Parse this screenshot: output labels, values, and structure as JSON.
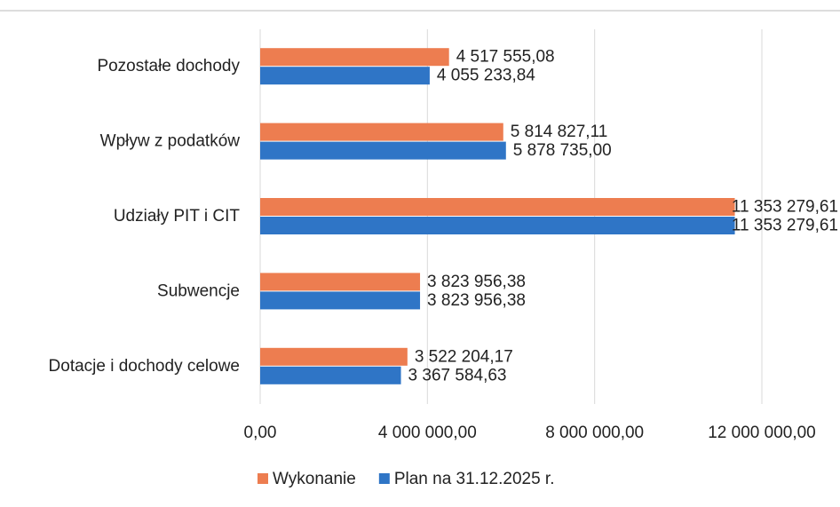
{
  "chart_data": {
    "type": "hbar",
    "categories": [
      "Pozostałe dochody",
      "Wpływ z podatków",
      "Udziały PIT i CIT",
      "Subwencje",
      "Dotacje i dochody celowe"
    ],
    "series": [
      {
        "name": "Wykonanie",
        "color": "#ed7d50",
        "values": [
          4517555.08,
          5814827.11,
          11353279.61,
          3823956.38,
          3522204.17
        ],
        "value_labels": [
          "4 517 555,08",
          "5 814 827,11",
          "11 353 279,61",
          "3 823 956,38",
          "3 522 204,17"
        ]
      },
      {
        "name": "Plan na 31.12.2025 r.",
        "color": "#2f75c6",
        "values": [
          4055233.84,
          5878735.0,
          11353279.61,
          3823956.38,
          3367584.63
        ],
        "value_labels": [
          "4 055 233,84",
          "5 878 735,00",
          "11 353 279,61",
          "3 823 956,38",
          "3 367 584,63"
        ]
      }
    ],
    "xlim": [
      0,
      12000000
    ],
    "xticks": [
      {
        "value": 0,
        "label": "0,00"
      },
      {
        "value": 4000000,
        "label": "4 000 000,00"
      },
      {
        "value": 8000000,
        "label": "8 000 000,00"
      },
      {
        "value": 12000000,
        "label": "12 000 000,00"
      }
    ],
    "grid": true,
    "legend": "bottom"
  }
}
